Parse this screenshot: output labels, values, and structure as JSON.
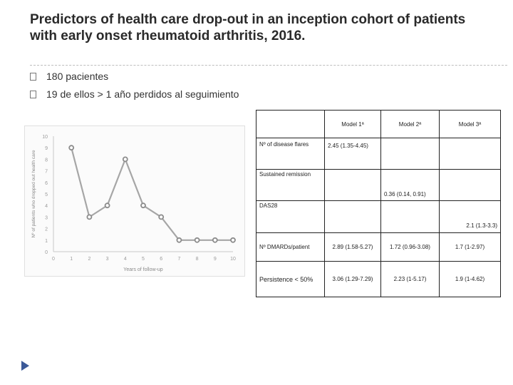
{
  "slide": {
    "title": "Predictors of health care drop-out in an inception cohort of patients with early onset rheumatoid arthritis, 2016.",
    "bullets": [
      "180 pacientes",
      "19 de ellos > 1 año perdidos al seguimiento"
    ]
  },
  "chart_data": {
    "type": "line",
    "xlabel": "Years of follow-up",
    "ylabel": "Nº of patients who dropped out health care",
    "x": [
      1,
      2,
      3,
      4,
      5,
      6,
      7,
      8,
      9,
      10
    ],
    "values": [
      9,
      3,
      4,
      8,
      4,
      3,
      1,
      1,
      1,
      1
    ],
    "xticks": [
      "0",
      "1",
      "2",
      "3",
      "4",
      "5",
      "6",
      "7",
      "8",
      "9",
      "10"
    ],
    "yticks": [
      "0",
      "1",
      "2",
      "3",
      "4",
      "5",
      "6",
      "7",
      "8",
      "9",
      "10"
    ],
    "xlim": [
      0,
      10
    ],
    "ylim": [
      0,
      10
    ],
    "line_color": "#a6a6a6",
    "marker_color": "#8c8c8c"
  },
  "table": {
    "headers": [
      "",
      "Model 1ª",
      "Model 2ª",
      "Model 3ª"
    ],
    "rows": [
      {
        "label": "Nº of disease flares",
        "m1": "2.45 (1.35-4.45)",
        "m2": "",
        "m3": ""
      },
      {
        "label": "Sustained remission",
        "m1": "",
        "m2": "0.36 (0.14, 0.91)",
        "m3": ""
      },
      {
        "label": "DAS28",
        "m1": "",
        "m2": "",
        "m3": "2.1 (1.3-3.3)"
      },
      {
        "label": "Nº DMARDs/patient",
        "m1": "2.89 (1.58-5.27)",
        "m2": "1.72 (0.96-3.08)",
        "m3": "1.7 (1-2.97)"
      },
      {
        "label": "Persistence < 50%",
        "m1": "3.06 (1.29-7.29)",
        "m2": "2.23 (1-5.17)",
        "m3": "1.9 (1-4.62)"
      }
    ]
  }
}
